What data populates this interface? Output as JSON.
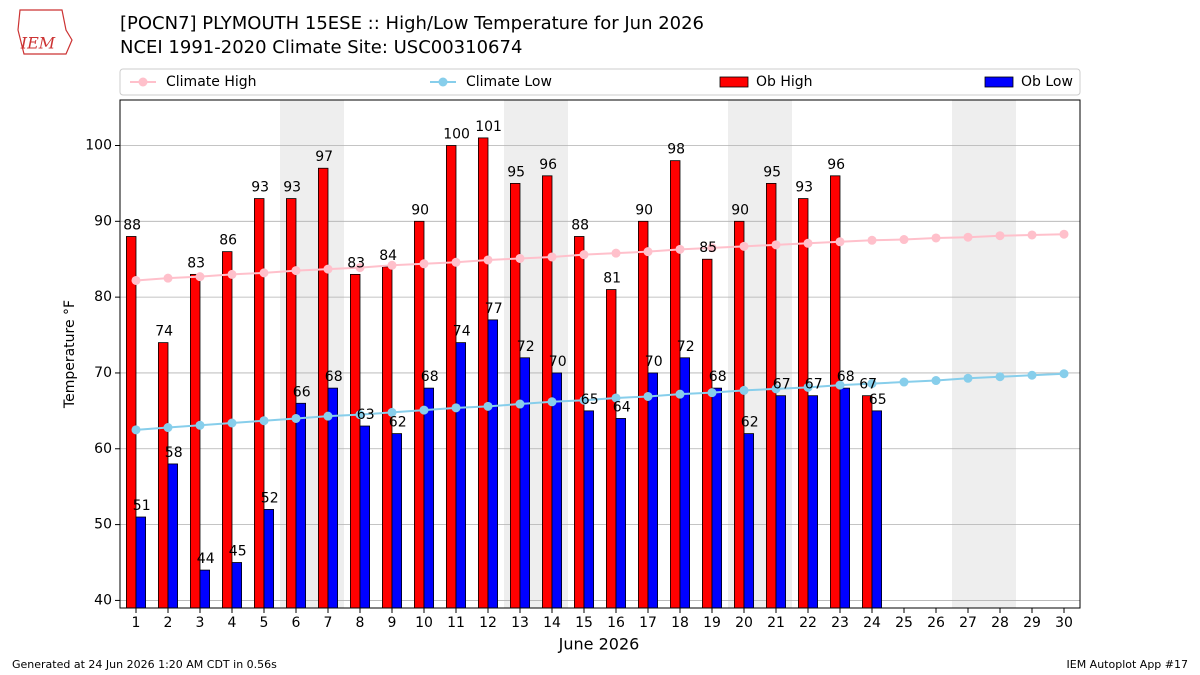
{
  "chart_data": {
    "type": "bar",
    "logo_text": "IEM",
    "title": "[POCN7] PLYMOUTH 15ESE :: High/Low Temperature for Jun 2026",
    "subtitle": "NCEI 1991-2020 Climate Site: USC00310674",
    "x_label": "June 2026",
    "y_label": "Temperature °F",
    "footer_left": "Generated at 24 Jun 2026 1:20 AM CDT in 0.56s",
    "footer_right": "IEM Autoplot App #17",
    "x": [
      1,
      2,
      3,
      4,
      5,
      6,
      7,
      8,
      9,
      10,
      11,
      12,
      13,
      14,
      15,
      16,
      17,
      18,
      19,
      20,
      21,
      22,
      23,
      24,
      25,
      26,
      27,
      28,
      29,
      30
    ],
    "xlim": [
      0.5,
      30.5
    ],
    "xticks": [
      1,
      2,
      3,
      4,
      5,
      6,
      7,
      8,
      9,
      10,
      11,
      12,
      13,
      14,
      15,
      16,
      17,
      18,
      19,
      20,
      21,
      22,
      23,
      24,
      25,
      26,
      27,
      28,
      29,
      30
    ],
    "ylim": [
      39,
      106
    ],
    "yticks": [
      40,
      50,
      60,
      70,
      80,
      90,
      100
    ],
    "grid": true,
    "shaded_spans": [
      [
        5.5,
        7.5
      ],
      [
        12.5,
        14.5
      ],
      [
        19.5,
        21.5
      ],
      [
        26.5,
        28.5
      ]
    ],
    "shade_color": "#eeeeee",
    "series": [
      {
        "name": "Climate High",
        "style": "line",
        "color": "#ffc0cb",
        "values": [
          82.2,
          82.5,
          82.7,
          83.0,
          83.2,
          83.5,
          83.7,
          83.9,
          84.2,
          84.4,
          84.6,
          84.9,
          85.1,
          85.3,
          85.6,
          85.8,
          86.0,
          86.3,
          86.5,
          86.7,
          86.9,
          87.1,
          87.3,
          87.5,
          87.6,
          87.8,
          87.9,
          88.1,
          88.2,
          88.3
        ]
      },
      {
        "name": "Climate Low",
        "style": "line",
        "color": "#87ceeb",
        "values": [
          62.5,
          62.8,
          63.1,
          63.4,
          63.7,
          64.0,
          64.3,
          64.5,
          64.8,
          65.1,
          65.4,
          65.6,
          65.9,
          66.2,
          66.4,
          66.7,
          66.9,
          67.2,
          67.4,
          67.7,
          67.9,
          68.1,
          68.4,
          68.6,
          68.8,
          69.0,
          69.3,
          69.5,
          69.7,
          69.9
        ]
      },
      {
        "name": "Ob High",
        "style": "bar",
        "color": "#ff0000",
        "values": [
          88,
          74,
          83,
          86,
          93,
          93,
          97,
          83,
          84,
          90,
          100,
          101,
          95,
          96,
          88,
          81,
          90,
          98,
          85,
          90,
          95,
          93,
          96,
          67,
          null,
          null,
          null,
          null,
          null,
          null
        ]
      },
      {
        "name": "Ob Low",
        "style": "bar",
        "color": "#0000ff",
        "values": [
          51,
          58,
          44,
          45,
          52,
          66,
          68,
          63,
          62,
          68,
          74,
          77,
          72,
          70,
          65,
          64,
          70,
          72,
          68,
          62,
          67,
          67,
          68,
          65,
          null,
          null,
          null,
          null,
          null,
          null
        ]
      }
    ]
  }
}
